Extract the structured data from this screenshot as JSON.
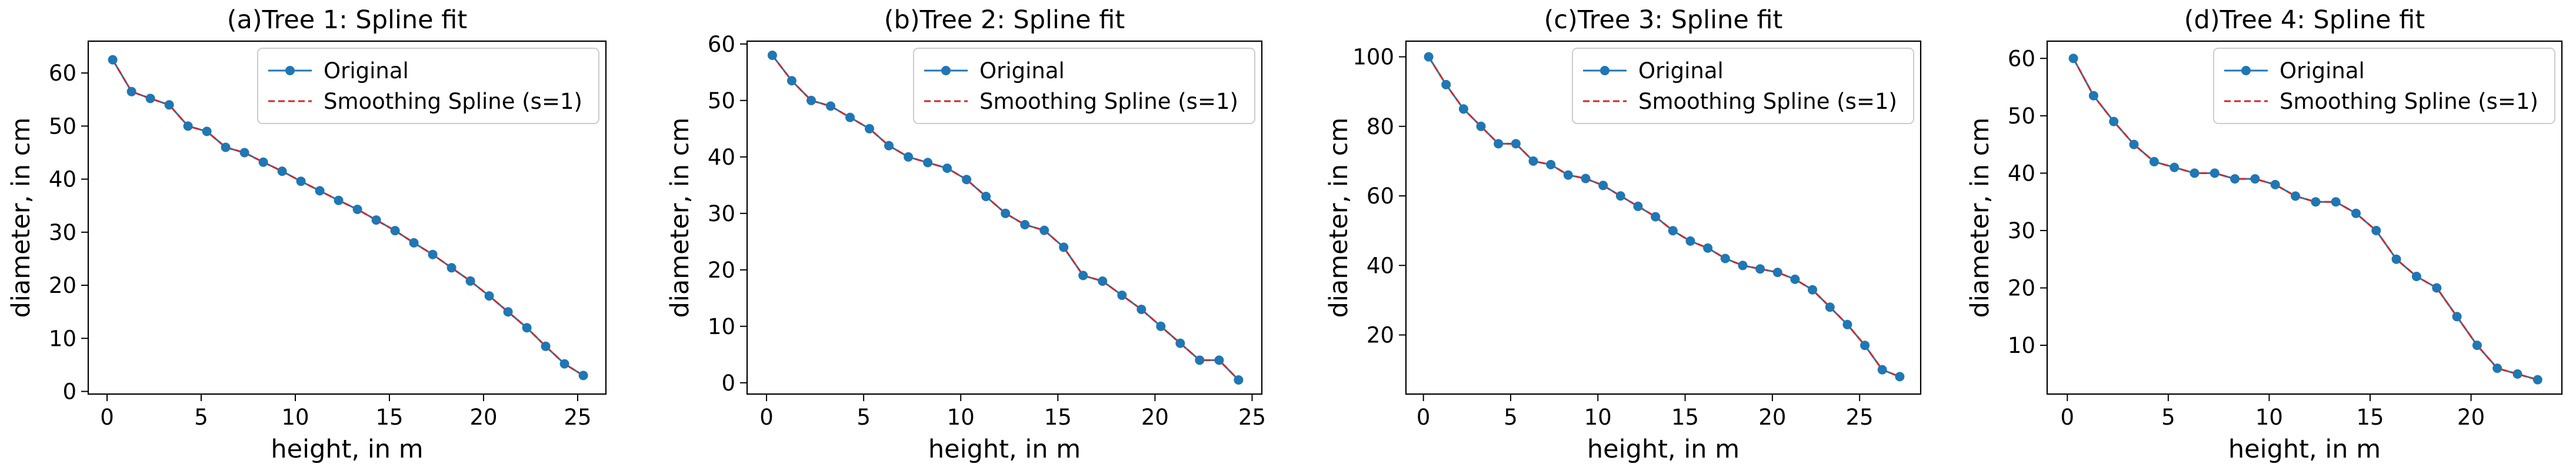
{
  "chart_data": [
    {
      "type": "line",
      "label": "(a)",
      "title": "Tree 1: Spline fit",
      "xlabel": "height, in m",
      "ylabel": "diameter, in cm",
      "xlim": [
        -1,
        26.5
      ],
      "ylim": [
        -0.5,
        66
      ],
      "xticks": [
        0,
        5,
        10,
        15,
        20,
        25
      ],
      "yticks": [
        0,
        10,
        20,
        30,
        40,
        50,
        60
      ],
      "legend": {
        "position": "top-right",
        "entries": [
          "Original",
          "Smoothing Spline (s=1)"
        ]
      },
      "series": [
        {
          "name": "Original",
          "color": "#1f77b4",
          "marker": "circle",
          "x": [
            0.3,
            1.3,
            2.3,
            3.3,
            4.3,
            5.3,
            6.3,
            7.3,
            8.3,
            9.3,
            10.3,
            11.3,
            12.3,
            13.3,
            14.3,
            15.3,
            16.3,
            17.3,
            18.3,
            19.3,
            20.3,
            21.3,
            22.3,
            23.3,
            24.3,
            25.3
          ],
          "y": [
            62.5,
            56.5,
            55.2,
            54.0,
            50.0,
            49.0,
            46.0,
            45.0,
            43.2,
            41.5,
            39.6,
            37.8,
            36.0,
            34.3,
            32.3,
            30.3,
            28.0,
            25.8,
            23.3,
            20.8,
            18.0,
            15.0,
            12.0,
            8.5,
            5.2,
            3.0
          ]
        },
        {
          "name": "Smoothing Spline (s=1)",
          "color": "#d62728",
          "style": "dashed",
          "x": [
            0.3,
            1.3,
            2.3,
            3.3,
            4.3,
            5.3,
            6.3,
            7.3,
            8.3,
            9.3,
            10.3,
            11.3,
            12.3,
            13.3,
            14.3,
            15.3,
            16.3,
            17.3,
            18.3,
            19.3,
            20.3,
            21.3,
            22.3,
            23.3,
            24.3,
            25.3
          ],
          "y": [
            62.5,
            56.5,
            55.2,
            54.0,
            50.0,
            49.0,
            46.0,
            45.0,
            43.2,
            41.5,
            39.6,
            37.8,
            36.0,
            34.3,
            32.3,
            30.3,
            28.0,
            25.8,
            23.3,
            20.8,
            18.0,
            15.0,
            12.0,
            8.5,
            5.2,
            3.0
          ]
        }
      ]
    },
    {
      "type": "line",
      "label": "(b)",
      "title": "Tree 2: Spline fit",
      "xlabel": "height, in m",
      "ylabel": "diameter, in cm",
      "xlim": [
        -1,
        25.5
      ],
      "ylim": [
        -2,
        60.5
      ],
      "xticks": [
        0,
        5,
        10,
        15,
        20,
        25
      ],
      "yticks": [
        0,
        10,
        20,
        30,
        40,
        50,
        60
      ],
      "legend": {
        "position": "top-right",
        "entries": [
          "Original",
          "Smoothing Spline (s=1)"
        ]
      },
      "series": [
        {
          "name": "Original",
          "color": "#1f77b4",
          "marker": "circle",
          "x": [
            0.3,
            1.3,
            2.3,
            3.3,
            4.3,
            5.3,
            6.3,
            7.3,
            8.3,
            9.3,
            10.3,
            11.3,
            12.3,
            13.3,
            14.3,
            15.3,
            16.3,
            17.3,
            18.3,
            19.3,
            20.3,
            21.3,
            22.3,
            23.3,
            24.3
          ],
          "y": [
            58.0,
            53.5,
            50.0,
            49.0,
            47.0,
            45.0,
            42.0,
            40.0,
            39.0,
            38.0,
            36.0,
            33.0,
            30.0,
            28.0,
            27.0,
            24.0,
            19.0,
            18.0,
            15.5,
            13.0,
            10.0,
            7.0,
            4.0,
            4.0,
            0.5
          ]
        },
        {
          "name": "Smoothing Spline (s=1)",
          "color": "#d62728",
          "style": "dashed",
          "x": [
            0.3,
            1.3,
            2.3,
            3.3,
            4.3,
            5.3,
            6.3,
            7.3,
            8.3,
            9.3,
            10.3,
            11.3,
            12.3,
            13.3,
            14.3,
            15.3,
            16.3,
            17.3,
            18.3,
            19.3,
            20.3,
            21.3,
            22.3,
            23.3,
            24.3
          ],
          "y": [
            58.0,
            53.5,
            50.0,
            49.0,
            47.0,
            45.0,
            42.0,
            40.0,
            39.0,
            38.0,
            36.0,
            33.0,
            30.0,
            28.0,
            27.0,
            24.0,
            19.0,
            18.0,
            15.5,
            13.0,
            10.0,
            7.0,
            4.0,
            4.0,
            0.5
          ]
        }
      ]
    },
    {
      "type": "line",
      "label": "(c)",
      "title": "Tree 3: Spline fit",
      "xlabel": "height, in m",
      "ylabel": "diameter, in cm",
      "xlim": [
        -1,
        28.5
      ],
      "ylim": [
        3,
        104.5
      ],
      "xticks": [
        0,
        5,
        10,
        15,
        20,
        25
      ],
      "yticks": [
        20,
        40,
        60,
        80,
        100
      ],
      "legend": {
        "position": "top-right",
        "entries": [
          "Original",
          "Smoothing Spline (s=1)"
        ]
      },
      "series": [
        {
          "name": "Original",
          "color": "#1f77b4",
          "marker": "circle",
          "x": [
            0.3,
            1.3,
            2.3,
            3.3,
            4.3,
            5.3,
            6.3,
            7.3,
            8.3,
            9.3,
            10.3,
            11.3,
            12.3,
            13.3,
            14.3,
            15.3,
            16.3,
            17.3,
            18.3,
            19.3,
            20.3,
            21.3,
            22.3,
            23.3,
            24.3,
            25.3,
            26.3,
            27.3
          ],
          "y": [
            100.0,
            92.0,
            85.0,
            80.0,
            75.0,
            75.0,
            70.0,
            69.0,
            66.0,
            65.0,
            63.0,
            60.0,
            57.0,
            54.0,
            50.0,
            47.0,
            45.0,
            42.0,
            40.0,
            39.0,
            38.0,
            36.0,
            33.0,
            28.0,
            23.0,
            17.0,
            10.0,
            8.0
          ]
        },
        {
          "name": "Smoothing Spline (s=1)",
          "color": "#d62728",
          "style": "dashed",
          "x": [
            0.3,
            1.3,
            2.3,
            3.3,
            4.3,
            5.3,
            6.3,
            7.3,
            8.3,
            9.3,
            10.3,
            11.3,
            12.3,
            13.3,
            14.3,
            15.3,
            16.3,
            17.3,
            18.3,
            19.3,
            20.3,
            21.3,
            22.3,
            23.3,
            24.3,
            25.3,
            26.3,
            27.3
          ],
          "y": [
            100.0,
            92.0,
            85.0,
            80.0,
            75.0,
            75.0,
            70.0,
            69.0,
            66.0,
            65.0,
            63.0,
            60.0,
            57.0,
            54.0,
            50.0,
            47.0,
            45.0,
            42.0,
            40.0,
            39.0,
            38.0,
            36.0,
            33.0,
            28.0,
            23.0,
            17.0,
            10.0,
            8.0
          ]
        }
      ]
    },
    {
      "type": "line",
      "label": "(d)",
      "title": "Tree 4: Spline fit",
      "xlabel": "height, in m",
      "ylabel": "diameter, in cm",
      "xlim": [
        -1,
        24.5
      ],
      "ylim": [
        1.5,
        63
      ],
      "xticks": [
        0,
        5,
        10,
        15,
        20
      ],
      "yticks": [
        10,
        20,
        30,
        40,
        50,
        60
      ],
      "legend": {
        "position": "top-right",
        "entries": [
          "Original",
          "Smoothing Spline (s=1)"
        ]
      },
      "series": [
        {
          "name": "Original",
          "color": "#1f77b4",
          "marker": "circle",
          "x": [
            0.3,
            1.3,
            2.3,
            3.3,
            4.3,
            5.3,
            6.3,
            7.3,
            8.3,
            9.3,
            10.3,
            11.3,
            12.3,
            13.3,
            14.3,
            15.3,
            16.3,
            17.3,
            18.3,
            19.3,
            20.3,
            21.3,
            22.3,
            23.3
          ],
          "y": [
            60.0,
            53.5,
            49.0,
            45.0,
            42.0,
            41.0,
            40.0,
            40.0,
            39.0,
            39.0,
            38.0,
            36.0,
            35.0,
            35.0,
            33.0,
            30.0,
            25.0,
            22.0,
            20.0,
            15.0,
            10.0,
            6.0,
            5.0,
            4.0
          ]
        },
        {
          "name": "Smoothing Spline (s=1)",
          "color": "#d62728",
          "style": "dashed",
          "x": [
            0.3,
            1.3,
            2.3,
            3.3,
            4.3,
            5.3,
            6.3,
            7.3,
            8.3,
            9.3,
            10.3,
            11.3,
            12.3,
            13.3,
            14.3,
            15.3,
            16.3,
            17.3,
            18.3,
            19.3,
            20.3,
            21.3,
            22.3,
            23.3
          ],
          "y": [
            60.0,
            53.5,
            49.0,
            45.0,
            42.0,
            41.0,
            40.0,
            40.0,
            39.0,
            39.0,
            38.0,
            36.0,
            35.0,
            35.0,
            33.0,
            30.0,
            25.0,
            22.0,
            20.0,
            15.0,
            10.0,
            6.0,
            5.0,
            4.0
          ]
        }
      ]
    }
  ]
}
